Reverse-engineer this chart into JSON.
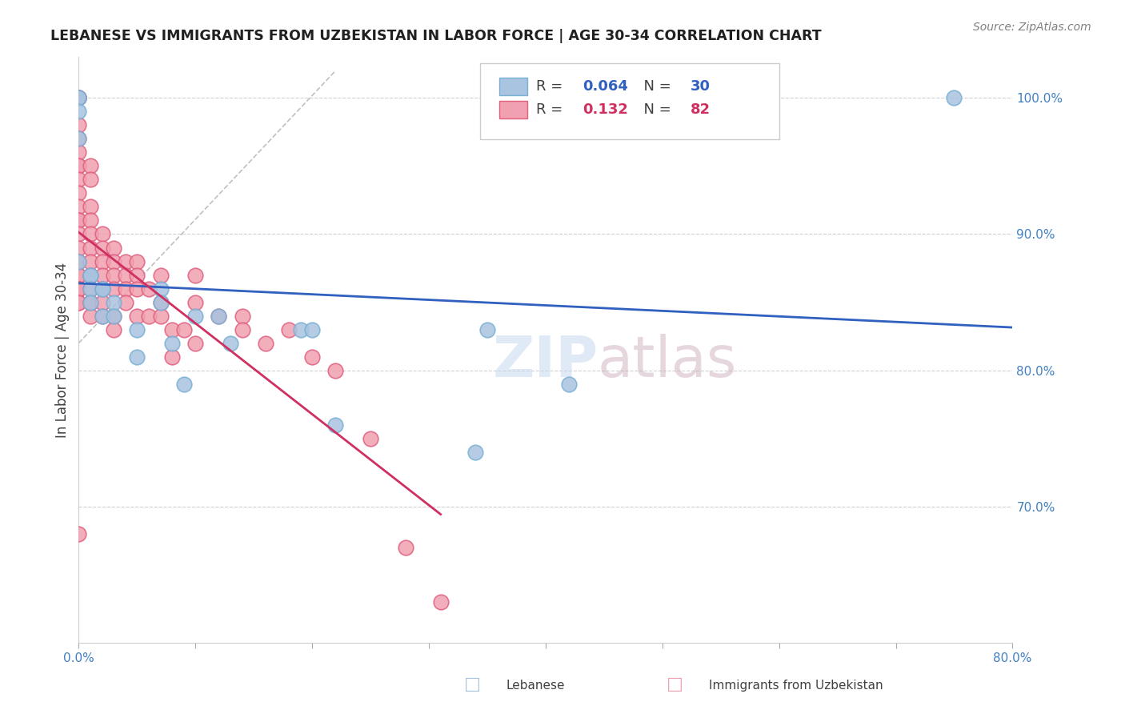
{
  "title": "LEBANESE VS IMMIGRANTS FROM UZBEKISTAN IN LABOR FORCE | AGE 30-34 CORRELATION CHART",
  "source": "Source: ZipAtlas.com",
  "xlabel_bottom": "",
  "ylabel": "In Labor Force | Age 30-34",
  "legend_label_blue": "Lebanese",
  "legend_label_pink": "Immigrants from Uzbekistan",
  "R_blue": 0.064,
  "N_blue": 30,
  "R_pink": 0.132,
  "N_pink": 82,
  "xlim": [
    0.0,
    0.8
  ],
  "ylim": [
    0.6,
    1.03
  ],
  "xticks": [
    0.0,
    0.1,
    0.2,
    0.3,
    0.4,
    0.5,
    0.6,
    0.7,
    0.8
  ],
  "xticklabels": [
    "0.0%",
    "",
    "",
    "",
    "",
    "",
    "",
    "",
    "80.0%"
  ],
  "yticks_right": [
    0.7,
    0.8,
    0.9,
    1.0
  ],
  "yticklabels_right": [
    "70.0%",
    "80.0%",
    "90.0%",
    "100.0%"
  ],
  "color_blue": "#a8c4e0",
  "color_blue_edge": "#7aafd4",
  "color_pink": "#f0a0b0",
  "color_pink_edge": "#e06080",
  "color_trend_blue": "#3060c0",
  "color_trend_pink": "#d03060",
  "color_ref_line": "#c0c0c0",
  "color_grid": "#d0d0d0",
  "color_axis": "#4080c0",
  "color_title": "#202020",
  "background_color": "#ffffff",
  "watermark_text": "ZIPatlas",
  "blue_x": [
    0.0,
    0.0,
    0.0,
    0.0,
    0.0,
    0.01,
    0.01,
    0.01,
    0.01,
    0.02,
    0.02,
    0.02,
    0.03,
    0.03,
    0.05,
    0.05,
    0.07,
    0.07,
    0.08,
    0.09,
    0.1,
    0.12,
    0.13,
    0.19,
    0.2,
    0.22,
    0.34,
    0.35,
    0.42,
    0.75
  ],
  "blue_y": [
    1.0,
    1.0,
    0.99,
    0.97,
    0.88,
    0.87,
    0.87,
    0.86,
    0.85,
    0.86,
    0.86,
    0.84,
    0.85,
    0.84,
    0.83,
    0.81,
    0.86,
    0.85,
    0.82,
    0.79,
    0.84,
    0.84,
    0.82,
    0.83,
    0.83,
    0.76,
    0.74,
    0.83,
    0.79,
    1.0
  ],
  "pink_x": [
    0.0,
    0.0,
    0.0,
    0.0,
    0.0,
    0.0,
    0.0,
    0.0,
    0.0,
    0.0,
    0.0,
    0.0,
    0.0,
    0.0,
    0.0,
    0.0,
    0.0,
    0.0,
    0.0,
    0.0,
    0.0,
    0.0,
    0.0,
    0.0,
    0.0,
    0.0,
    0.0,
    0.0,
    0.01,
    0.01,
    0.01,
    0.01,
    0.01,
    0.01,
    0.01,
    0.01,
    0.01,
    0.01,
    0.01,
    0.01,
    0.02,
    0.02,
    0.02,
    0.02,
    0.02,
    0.02,
    0.02,
    0.03,
    0.03,
    0.03,
    0.03,
    0.03,
    0.03,
    0.04,
    0.04,
    0.04,
    0.04,
    0.05,
    0.05,
    0.05,
    0.05,
    0.06,
    0.06,
    0.07,
    0.07,
    0.07,
    0.08,
    0.08,
    0.09,
    0.1,
    0.1,
    0.1,
    0.12,
    0.14,
    0.14,
    0.16,
    0.18,
    0.2,
    0.22,
    0.25,
    0.28,
    0.31
  ],
  "pink_y": [
    1.0,
    1.0,
    1.0,
    1.0,
    1.0,
    0.98,
    0.97,
    0.96,
    0.95,
    0.95,
    0.94,
    0.93,
    0.92,
    0.91,
    0.91,
    0.9,
    0.89,
    0.88,
    0.88,
    0.87,
    0.87,
    0.86,
    0.86,
    0.86,
    0.86,
    0.85,
    0.85,
    0.68,
    0.95,
    0.94,
    0.92,
    0.91,
    0.9,
    0.89,
    0.88,
    0.87,
    0.86,
    0.85,
    0.85,
    0.84,
    0.9,
    0.89,
    0.88,
    0.87,
    0.86,
    0.85,
    0.84,
    0.89,
    0.88,
    0.87,
    0.86,
    0.84,
    0.83,
    0.88,
    0.87,
    0.86,
    0.85,
    0.88,
    0.87,
    0.86,
    0.84,
    0.86,
    0.84,
    0.87,
    0.85,
    0.84,
    0.83,
    0.81,
    0.83,
    0.87,
    0.85,
    0.82,
    0.84,
    0.84,
    0.83,
    0.82,
    0.83,
    0.81,
    0.8,
    0.75,
    0.67,
    0.63
  ]
}
